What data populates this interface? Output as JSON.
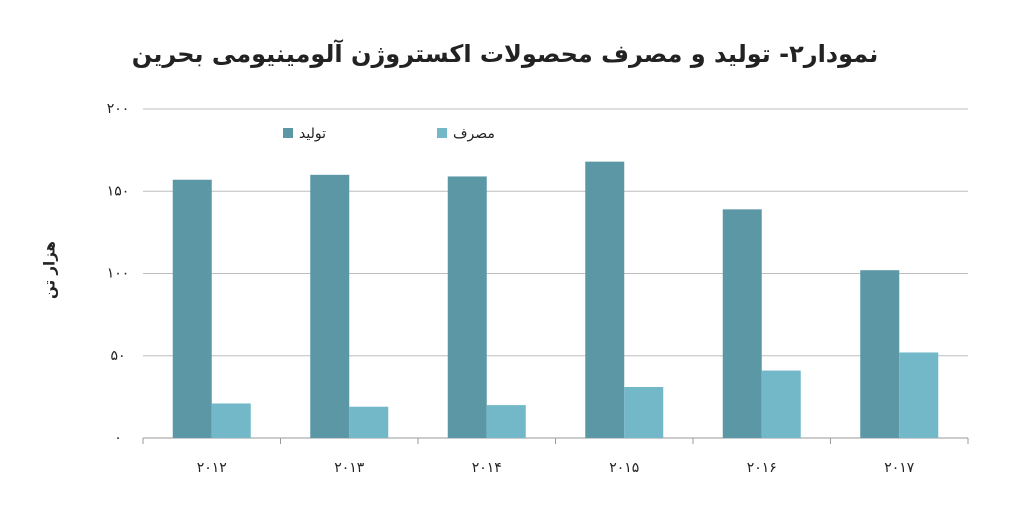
{
  "chart_data": {
    "type": "bar",
    "title": "نمودار۲- تولید و مصرف محصولات اکستروژن آلومینیومی بحرین",
    "y_label": "هزار تن",
    "categories": [
      "۲۰۱۲",
      "۲۰۱۳",
      "۲۰۱۴",
      "۲۰۱۵",
      "۲۰۱۶",
      "۲۰۱۷"
    ],
    "series": [
      {
        "name": "تولید",
        "color": "#5b97a5",
        "values": [
          157,
          160,
          159,
          168,
          139,
          102
        ]
      },
      {
        "name": "مصرف",
        "color": "#72b8c9",
        "values": [
          21,
          19,
          20,
          31,
          41,
          52
        ]
      }
    ],
    "ylim": [
      0,
      200
    ],
    "yticks": [
      {
        "value": 0,
        "label": "۰"
      },
      {
        "value": 50,
        "label": "۵۰"
      },
      {
        "value": 100,
        "label": "۱۰۰"
      },
      {
        "value": 150,
        "label": "۱۵۰"
      },
      {
        "value": 200,
        "label": "۲۰۰"
      }
    ],
    "grid": true,
    "legend": "top-left"
  }
}
